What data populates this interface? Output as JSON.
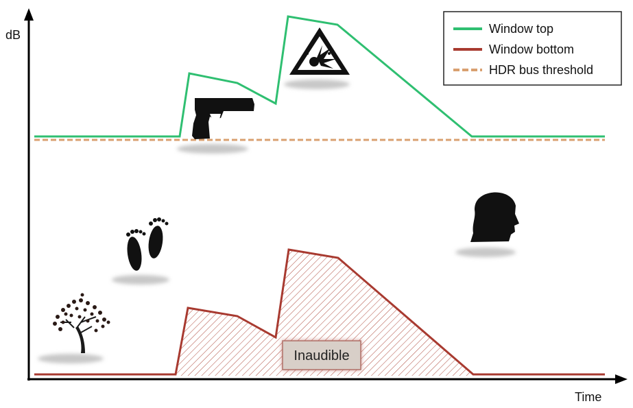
{
  "axes": {
    "y_label": "dB",
    "x_label": "Time"
  },
  "legend": {
    "placement": "top-right",
    "items": [
      {
        "label": "Window top",
        "color": "#2fbf71",
        "style": "solid"
      },
      {
        "label": "Window bottom",
        "color": "#a83a30",
        "style": "solid"
      },
      {
        "label": "HDR bus threshold",
        "color": "#d9a070",
        "style": "dashed"
      }
    ]
  },
  "annotation": {
    "label": "Inaudible",
    "fill_color": "#d8cfc8"
  },
  "icons": [
    {
      "name": "gun-icon"
    },
    {
      "name": "explosion-warning-icon"
    },
    {
      "name": "footprints-icon"
    },
    {
      "name": "head-silhouette-icon"
    },
    {
      "name": "tree-icon"
    }
  ],
  "colors": {
    "axis": "#000000",
    "hatch": "#b55a4e",
    "shadow": "#cccccc"
  }
}
